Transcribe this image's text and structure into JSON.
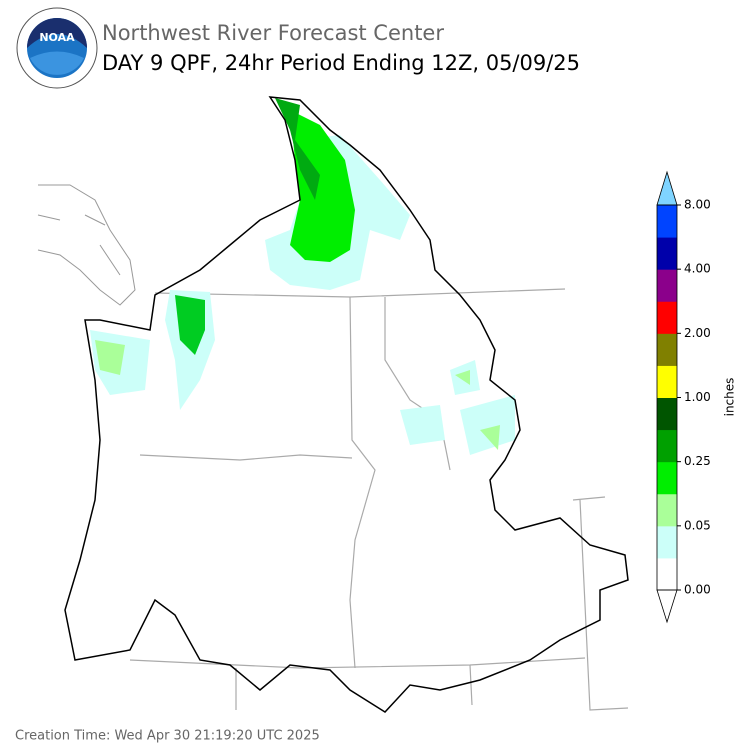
{
  "logo": {
    "text": "NOAA"
  },
  "header": {
    "title": "Northwest River Forecast Center",
    "subtitle": "DAY 9 QPF, 24hr Period Ending 12Z, 05/09/25"
  },
  "colorbar": {
    "label": "inches",
    "ticks": [
      "0.00",
      "0.05",
      "0.25",
      "1.00",
      "2.00",
      "4.00",
      "8.00"
    ],
    "colors": [
      "#ffffff",
      "#ccfff9",
      "#aaff99",
      "#00ee00",
      "#00a000",
      "#005500",
      "#ffff00",
      "#808000",
      "#ff0000",
      "#8b008b",
      "#0000aa",
      "#0044ff"
    ],
    "under_color": "#ffffff",
    "over_color": "#7fd4ff"
  },
  "footer": {
    "creation_time": "Creation Time: Wed Apr 30 21:19:20 UTC 2025"
  }
}
